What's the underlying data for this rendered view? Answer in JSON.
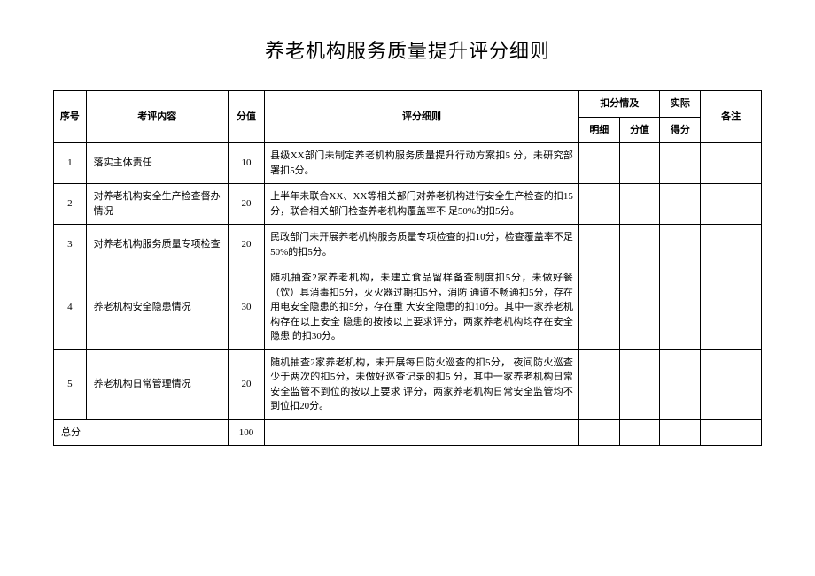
{
  "title": "养老机构服务质量提升评分细则",
  "headers": {
    "seq": "序号",
    "item": "考评内容",
    "score": "分值",
    "rule": "评分细则",
    "deduct_group": "扣分情及",
    "detail": "明细",
    "value": "分值",
    "actual": "实际",
    "actual_score": "得分",
    "note": "各注"
  },
  "rows": [
    {
      "seq": "1",
      "item": "落实主体责任",
      "score": "10",
      "rule": "县级XX部门未制定养老机构服务质量提升行动方案扣5 分，未研究部署扣5分。"
    },
    {
      "seq": "2",
      "item": "对养老机构安全生产检查督办情况",
      "score": "20",
      "rule": "上半年未联合XX、XX等相关部门对养老机构进行安全生产检查的扣15分，联合相关部门检查养老机构覆盖率不 足50%的扣5分。"
    },
    {
      "seq": "3",
      "item": "对养老机构服务质量专项检查",
      "score": "20",
      "rule": "民政部门未开展养老机构服务质量专项检查的扣10分，检查覆盖率不足50%的扣5分。"
    },
    {
      "seq": "4",
      "item": "养老机构安全隐患情况",
      "score": "30",
      "rule": "随机抽查2家养老机构，未建立食品留样备查制度扣5分，未做好餐（饮）具消毒扣5分，灭火器过期扣5分，消防 通道不畅通扣5分，存在用电安全隐患的扣5分，存在重 大安全隐患的扣10分。其中一家养老机构存在以上安全 隐患的按按以上要求评分，两家养老机构均存在安全隐患 的扣30分。"
    },
    {
      "seq": "5",
      "item": "养老机构日常管理情况",
      "score": "20",
      "rule": "随机抽查2家养老机构，未开展每日防火巡查的扣5分， 夜间防火巡查少于两次的扣5分，未做好巡查记录的扣5 分，其中一家养老机构日常安全监管不到位的按以上要求 评分，两家养老机构日常安全监管均不到位扣20分。"
    }
  ],
  "total": {
    "label": "总分",
    "value": "100"
  }
}
